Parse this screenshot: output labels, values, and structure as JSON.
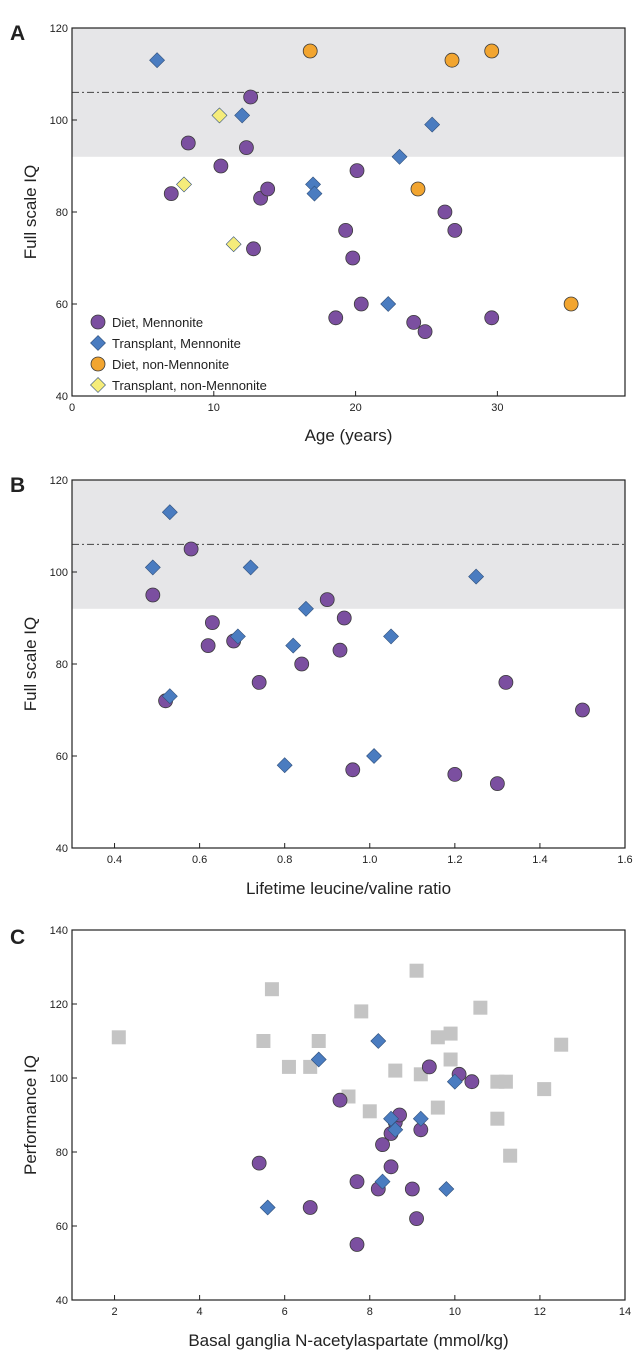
{
  "chart_data": [
    {
      "panel_label": "A",
      "type": "scatter",
      "xlabel": "Age (years)",
      "ylabel": "Full scale IQ",
      "xlim": [
        0,
        39
      ],
      "ylim": [
        40,
        120
      ],
      "xticks": [
        0,
        10,
        20,
        30
      ],
      "yticks": [
        40,
        60,
        80,
        100,
        120
      ],
      "shaded_band": [
        92,
        120
      ],
      "reference_line": 106,
      "legend_position": "bottom-left",
      "legend": [
        {
          "label": "Diet, Mennonite",
          "marker": "circle",
          "color": "#7b4fa0"
        },
        {
          "label": "Transplant, Mennonite",
          "marker": "diamond",
          "color": "#4a7cc0"
        },
        {
          "label": "Diet, non-Mennonite",
          "marker": "circle",
          "color": "#f2a530"
        },
        {
          "label": "Transplant, non-Mennonite",
          "marker": "diamond",
          "color": "#f5ec7a"
        }
      ],
      "series": [
        {
          "marker": "circle",
          "color": "#7b4fa0",
          "points": [
            [
              7,
              84
            ],
            [
              8.2,
              95
            ],
            [
              10.5,
              90
            ],
            [
              12.3,
              94
            ],
            [
              12.6,
              105
            ],
            [
              12.8,
              72
            ],
            [
              13.3,
              83
            ],
            [
              13.8,
              85
            ],
            [
              18.6,
              57
            ],
            [
              19.3,
              76
            ],
            [
              19.8,
              70
            ],
            [
              20.1,
              89
            ],
            [
              20.4,
              60
            ],
            [
              24.1,
              56
            ],
            [
              24.9,
              54
            ],
            [
              26.3,
              80
            ],
            [
              27,
              76
            ],
            [
              29.6,
              57
            ]
          ]
        },
        {
          "marker": "diamond",
          "color": "#4a7cc0",
          "points": [
            [
              6,
              113
            ],
            [
              12,
              101
            ],
            [
              17,
              86
            ],
            [
              17.1,
              84
            ],
            [
              22.3,
              60
            ],
            [
              23.1,
              92
            ],
            [
              25.4,
              99
            ]
          ]
        },
        {
          "marker": "circle",
          "color": "#f2a530",
          "points": [
            [
              16.8,
              115
            ],
            [
              24.4,
              85
            ],
            [
              26.8,
              113
            ],
            [
              29.6,
              115
            ],
            [
              35.2,
              60
            ]
          ]
        },
        {
          "marker": "diamond",
          "color": "#f5ec7a",
          "points": [
            [
              7.9,
              86
            ],
            [
              10.4,
              101
            ],
            [
              11.4,
              73
            ]
          ]
        }
      ]
    },
    {
      "panel_label": "B",
      "type": "scatter",
      "xlabel": "Lifetime leucine/valine ratio",
      "ylabel": "Full scale IQ",
      "xlim": [
        0.3,
        1.6
      ],
      "ylim": [
        40,
        120
      ],
      "xticks": [
        0.4,
        0.6,
        0.8,
        1.0,
        1.2,
        1.4,
        1.6
      ],
      "xtick_labels": [
        "0.4",
        "0.6",
        "0.8",
        "1.0",
        "1.2",
        "1.4",
        "1.6"
      ],
      "yticks": [
        40,
        60,
        80,
        100,
        120
      ],
      "shaded_band": [
        92,
        120
      ],
      "reference_line": 106,
      "series": [
        {
          "marker": "circle",
          "color": "#7b4fa0",
          "points": [
            [
              0.49,
              95
            ],
            [
              0.52,
              72
            ],
            [
              0.58,
              105
            ],
            [
              0.62,
              84
            ],
            [
              0.63,
              89
            ],
            [
              0.68,
              85
            ],
            [
              0.74,
              76
            ],
            [
              0.84,
              80
            ],
            [
              0.9,
              94
            ],
            [
              0.93,
              83
            ],
            [
              0.94,
              90
            ],
            [
              0.96,
              57
            ],
            [
              1.2,
              56
            ],
            [
              1.3,
              54
            ],
            [
              1.32,
              76
            ],
            [
              1.5,
              70
            ]
          ]
        },
        {
          "marker": "diamond",
          "color": "#4a7cc0",
          "points": [
            [
              0.49,
              101
            ],
            [
              0.53,
              113
            ],
            [
              0.53,
              73
            ],
            [
              0.69,
              86
            ],
            [
              0.72,
              101
            ],
            [
              0.8,
              58
            ],
            [
              0.82,
              84
            ],
            [
              0.85,
              92
            ],
            [
              1.01,
              60
            ],
            [
              1.05,
              86
            ],
            [
              1.25,
              99
            ]
          ]
        }
      ]
    },
    {
      "panel_label": "C",
      "type": "scatter",
      "xlabel": "Basal ganglia N-acetylaspartate (mmol/kg)",
      "ylabel": "Performance IQ",
      "xlim": [
        1,
        14
      ],
      "ylim": [
        40,
        140
      ],
      "xticks": [
        2,
        4,
        6,
        8,
        10,
        12,
        14
      ],
      "yticks": [
        40,
        60,
        80,
        100,
        120,
        140
      ],
      "series": [
        {
          "marker": "square",
          "color": "#c4c4c4",
          "points": [
            [
              2.1,
              111
            ],
            [
              5.5,
              110
            ],
            [
              5.7,
              124
            ],
            [
              6.1,
              103
            ],
            [
              6.6,
              103
            ],
            [
              6.8,
              110
            ],
            [
              7.5,
              95
            ],
            [
              7.8,
              118
            ],
            [
              8.0,
              91
            ],
            [
              8.6,
              102
            ],
            [
              9.1,
              129
            ],
            [
              9.2,
              101
            ],
            [
              9.6,
              111
            ],
            [
              9.6,
              92
            ],
            [
              9.9,
              112
            ],
            [
              9.9,
              105
            ],
            [
              10.6,
              119
            ],
            [
              11.0,
              99
            ],
            [
              11.0,
              89
            ],
            [
              11.2,
              99
            ],
            [
              11.3,
              79
            ],
            [
              12.1,
              97
            ],
            [
              12.5,
              109
            ]
          ]
        },
        {
          "marker": "circle",
          "color": "#7b4fa0",
          "points": [
            [
              5.4,
              77
            ],
            [
              6.6,
              65
            ],
            [
              7.3,
              94
            ],
            [
              7.7,
              72
            ],
            [
              7.7,
              55
            ],
            [
              8.2,
              70
            ],
            [
              8.3,
              82
            ],
            [
              8.5,
              85
            ],
            [
              8.5,
              76
            ],
            [
              8.6,
              88
            ],
            [
              8.7,
              90
            ],
            [
              9.0,
              70
            ],
            [
              9.1,
              62
            ],
            [
              9.2,
              86
            ],
            [
              9.4,
              103
            ],
            [
              10.1,
              101
            ],
            [
              10.4,
              99
            ]
          ]
        },
        {
          "marker": "diamond",
          "color": "#4a7cc0",
          "points": [
            [
              5.6,
              65
            ],
            [
              6.8,
              105
            ],
            [
              8.2,
              110
            ],
            [
              8.3,
              72
            ],
            [
              8.5,
              89
            ],
            [
              8.6,
              86
            ],
            [
              9.2,
              89
            ],
            [
              9.8,
              70
            ],
            [
              10.0,
              99
            ]
          ]
        }
      ]
    }
  ]
}
